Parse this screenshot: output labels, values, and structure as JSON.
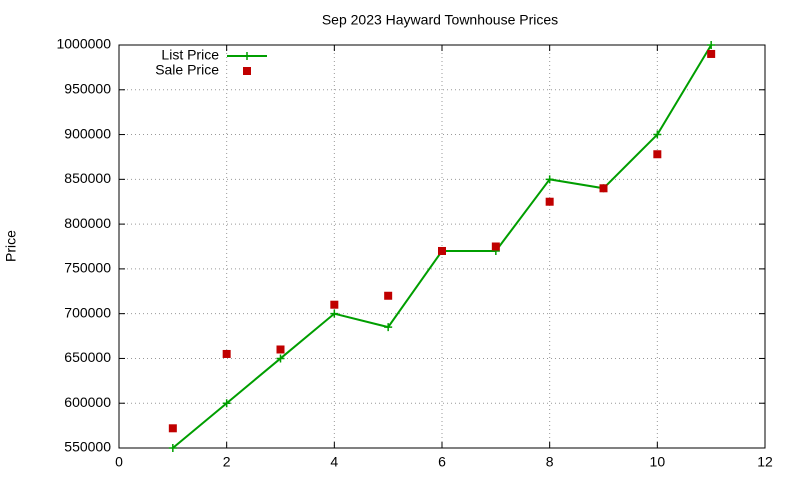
{
  "chart_data": {
    "type": "line",
    "title": "Sep 2023 Hayward Townhouse Prices",
    "ylabel": "Price",
    "x": [
      1,
      2,
      3,
      4,
      5,
      6,
      7,
      8,
      9,
      10,
      11
    ],
    "series": [
      {
        "name": "List Price",
        "color": "#009e00",
        "marker": "plus",
        "line": true,
        "values": [
          550000,
          600000,
          650000,
          700000,
          685000,
          770000,
          770000,
          850000,
          840000,
          900000,
          1000000
        ]
      },
      {
        "name": "Sale Price",
        "color": "#c00000",
        "marker": "square",
        "line": false,
        "values": [
          572000,
          655000,
          660000,
          710000,
          720000,
          770000,
          775000,
          825000,
          840000,
          878000,
          990000
        ]
      }
    ],
    "xlim": [
      0,
      12
    ],
    "xticks": [
      0,
      2,
      4,
      6,
      8,
      10,
      12
    ],
    "ylim": [
      550000,
      1000000
    ],
    "yticks": [
      550000,
      600000,
      650000,
      700000,
      750000,
      800000,
      850000,
      900000,
      950000,
      1000000
    ],
    "grid": true,
    "legend": "top-left"
  }
}
